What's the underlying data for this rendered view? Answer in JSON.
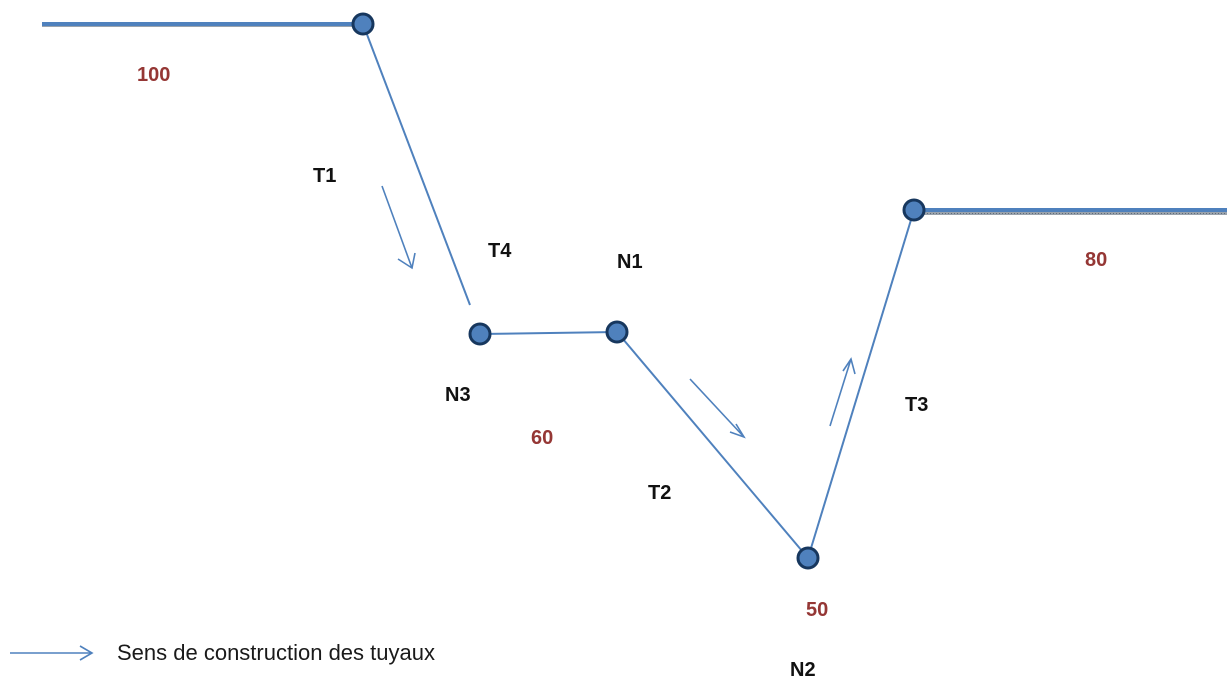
{
  "colors": {
    "pipe": "#4f81bd",
    "reservoir": "#4f81bd",
    "node_fill": "#4f81bd",
    "node_stroke": "#17375e",
    "elevation_text": "#953735",
    "label_text": "#111111"
  },
  "pipes": [
    {
      "id": "T1",
      "label": "T1"
    },
    {
      "id": "T2",
      "label": "T2"
    },
    {
      "id": "T3",
      "label": "T3"
    },
    {
      "id": "T4",
      "label": "T4"
    }
  ],
  "nodes": [
    {
      "id": "N1",
      "label": "N1"
    },
    {
      "id": "N2",
      "label": "N2"
    },
    {
      "id": "N3",
      "label": "N3"
    }
  ],
  "elevations": {
    "reservoir_left": "100",
    "reservoir_right": "80",
    "n3": "60",
    "n2": "50"
  },
  "legend": {
    "arrow_icon": "arrow-right-icon",
    "text": "Sens de construction des tuyaux"
  }
}
